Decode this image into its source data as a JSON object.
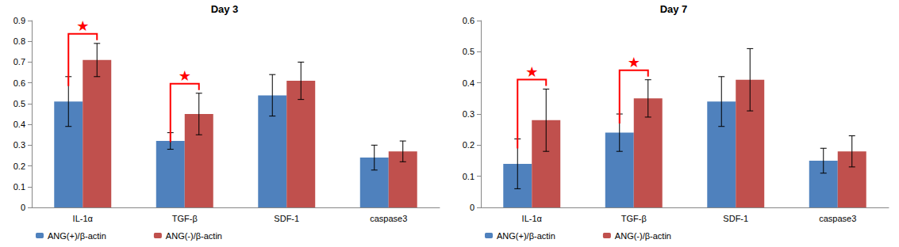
{
  "chart_data": [
    {
      "type": "bar",
      "title": "Day 3",
      "categories": [
        "IL-1α",
        "TGF-β",
        "SDF-1",
        "caspase3"
      ],
      "series": [
        {
          "name": "ANG(+)/β-actin",
          "color": "#4f81bd",
          "values": [
            0.51,
            0.32,
            0.54,
            0.24
          ],
          "errors": [
            0.12,
            0.04,
            0.1,
            0.06
          ]
        },
        {
          "name": "ANG(-)/β-actin",
          "color": "#c0504d",
          "values": [
            0.71,
            0.45,
            0.61,
            0.27
          ],
          "errors": [
            0.08,
            0.1,
            0.09,
            0.05
          ]
        }
      ],
      "significance": [
        {
          "category": "IL-1α",
          "text": "★",
          "color": "#ff0000"
        },
        {
          "category": "TGF-β",
          "text": "★",
          "color": "#ff0000"
        }
      ],
      "ylim": [
        0,
        0.9
      ],
      "yticks": [
        0,
        0.1,
        0.2,
        0.3,
        0.4,
        0.5,
        0.6,
        0.7,
        0.8,
        0.9
      ],
      "grid": false,
      "legend": "bottom"
    },
    {
      "type": "bar",
      "title": "Day 7",
      "categories": [
        "IL-1α",
        "TGF-β",
        "SDF-1",
        "caspase3"
      ],
      "series": [
        {
          "name": "ANG(+)/β-actin",
          "color": "#4f81bd",
          "values": [
            0.14,
            0.24,
            0.34,
            0.15
          ],
          "errors": [
            0.08,
            0.06,
            0.08,
            0.04
          ]
        },
        {
          "name": "ANG(-)/β-actin",
          "color": "#c0504d",
          "values": [
            0.28,
            0.35,
            0.41,
            0.18
          ],
          "errors": [
            0.1,
            0.06,
            0.1,
            0.05
          ]
        }
      ],
      "significance": [
        {
          "category": "IL-1α",
          "text": "★",
          "color": "#ff0000"
        },
        {
          "category": "TGF-β",
          "text": "★",
          "color": "#ff0000"
        }
      ],
      "ylim": [
        0,
        0.6
      ],
      "yticks": [
        0,
        0.1,
        0.2,
        0.3,
        0.4,
        0.5,
        0.6
      ],
      "grid": false,
      "legend": "bottom"
    }
  ]
}
